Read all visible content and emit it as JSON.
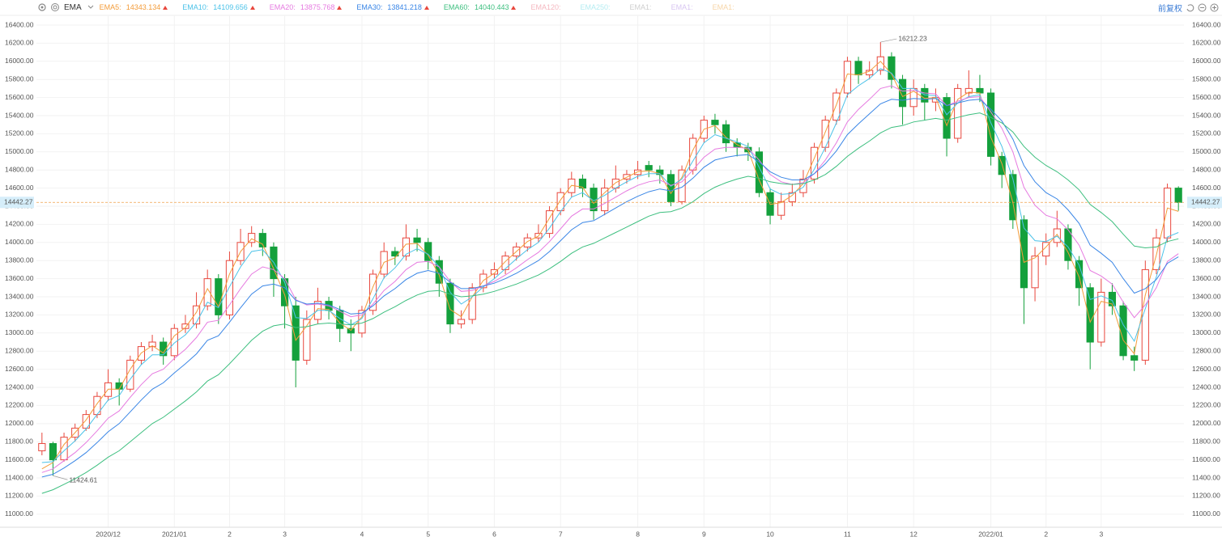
{
  "indicator": "EMA",
  "adjust_label": "前复权",
  "chart_data": {
    "type": "candlestick",
    "categories": [
      null,
      null,
      null,
      null,
      null,
      null,
      "2020/12",
      null,
      null,
      null,
      null,
      null,
      "2021/01",
      null,
      null,
      null,
      null,
      "2",
      null,
      null,
      null,
      null,
      "3",
      null,
      null,
      null,
      null,
      null,
      null,
      "4",
      null,
      null,
      null,
      null,
      null,
      "5",
      null,
      null,
      null,
      null,
      null,
      "6",
      null,
      null,
      null,
      null,
      null,
      "7",
      null,
      null,
      null,
      null,
      null,
      null,
      "8",
      null,
      null,
      null,
      null,
      null,
      "9",
      null,
      null,
      null,
      null,
      null,
      "10",
      null,
      null,
      null,
      null,
      null,
      null,
      "11",
      null,
      null,
      null,
      null,
      null,
      "12",
      null,
      null,
      null,
      null,
      null,
      null,
      "2022/01",
      null,
      null,
      null,
      null,
      "2",
      null,
      null,
      null,
      null,
      "3",
      null,
      null,
      null,
      null,
      null,
      null,
      null
    ],
    "open": [
      11700,
      11780,
      11600,
      11850,
      11950,
      12100,
      12300,
      12450,
      12380,
      12700,
      12850,
      12900,
      12750,
      13050,
      13100,
      13300,
      13600,
      13200,
      13800,
      14000,
      14100,
      13950,
      13600,
      13300,
      12700,
      13150,
      13350,
      13250,
      13050,
      13000,
      13250,
      13650,
      13900,
      13850,
      14050,
      14000,
      13800,
      13550,
      13100,
      13150,
      13500,
      13650,
      13700,
      13850,
      13950,
      14050,
      14100,
      14350,
      14550,
      14700,
      14600,
      14350,
      14600,
      14700,
      14750,
      14850,
      14800,
      14750,
      14450,
      14800,
      15150,
      15350,
      15300,
      15100,
      15050,
      15000,
      14550,
      14300,
      14450,
      14550,
      14700,
      15050,
      15350,
      15650,
      16000,
      15850,
      15900,
      16050,
      15800,
      15500,
      15700,
      15550,
      15600,
      15150,
      15650,
      15700,
      15650,
      14950,
      14750,
      14250,
      13500,
      13850,
      14000,
      14150,
      13800,
      13500,
      12900,
      13450,
      13300,
      12750,
      12700,
      13700,
      14050,
      14600
    ],
    "high": [
      11900,
      11800,
      11900,
      12000,
      12150,
      12350,
      12600,
      12500,
      12750,
      12900,
      12980,
      12950,
      13100,
      13200,
      13450,
      13700,
      13650,
      13900,
      14150,
      14180,
      14150,
      14000,
      13650,
      13400,
      13250,
      13500,
      13400,
      13300,
      13150,
      13300,
      13700,
      14000,
      13950,
      14200,
      14150,
      14050,
      13850,
      13600,
      13250,
      13550,
      13700,
      13780,
      13900,
      14000,
      14100,
      14200,
      14400,
      14600,
      14780,
      14750,
      14650,
      14700,
      14850,
      14800,
      14900,
      14900,
      14850,
      14800,
      14850,
      15200,
      15400,
      15420,
      15350,
      15150,
      15100,
      15050,
      14600,
      14550,
      14650,
      14800,
      15100,
      15400,
      15700,
      16050,
      16050,
      16000,
      16212.23,
      16100,
      15850,
      15800,
      15750,
      15700,
      15650,
      15750,
      15900,
      15850,
      15700,
      15000,
      14800,
      14300,
      13950,
      14100,
      14350,
      14200,
      13850,
      13550,
      13600,
      13550,
      13350,
      12850,
      13800,
      14150,
      14650,
      14620
    ],
    "low": [
      11650,
      11424.61,
      11580,
      11800,
      11920,
      12060,
      12250,
      12200,
      12350,
      12650,
      12800,
      12650,
      12700,
      13000,
      13050,
      13250,
      13100,
      13150,
      13750,
      13950,
      13850,
      13400,
      13050,
      12400,
      12650,
      13100,
      13150,
      12900,
      12800,
      12950,
      13200,
      13600,
      13750,
      13800,
      13900,
      13700,
      13400,
      13000,
      13050,
      13100,
      13450,
      13600,
      13650,
      13800,
      13900,
      14000,
      14050,
      14300,
      14500,
      14500,
      14250,
      14300,
      14550,
      14650,
      14700,
      14720,
      14650,
      14400,
      14420,
      14750,
      15100,
      15200,
      15000,
      14950,
      14900,
      14500,
      14200,
      14250,
      14400,
      14500,
      14650,
      15000,
      15300,
      15600,
      15750,
      15800,
      15850,
      15700,
      15300,
      15400,
      15350,
      15450,
      14950,
      15100,
      15600,
      15550,
      14850,
      14600,
      14150,
      13100,
      13350,
      13750,
      13950,
      13700,
      13300,
      12600,
      12850,
      13200,
      12700,
      12580,
      12650,
      13650,
      14000,
      14350
    ],
    "close": [
      11780,
      11600,
      11850,
      11950,
      12100,
      12300,
      12450,
      12380,
      12700,
      12850,
      12900,
      12750,
      13050,
      13100,
      13300,
      13600,
      13200,
      13800,
      14000,
      14100,
      13950,
      13600,
      13300,
      12700,
      13150,
      13350,
      13250,
      13050,
      13000,
      13250,
      13650,
      13900,
      13850,
      14050,
      14000,
      13800,
      13550,
      13100,
      13150,
      13500,
      13650,
      13700,
      13850,
      13950,
      14050,
      14100,
      14350,
      14550,
      14700,
      14600,
      14350,
      14600,
      14700,
      14750,
      14800,
      14800,
      14750,
      14450,
      14800,
      15150,
      15350,
      15300,
      15100,
      15050,
      15000,
      14550,
      14300,
      14450,
      14550,
      14700,
      15050,
      15350,
      15650,
      16000,
      15850,
      15900,
      16050,
      15800,
      15500,
      15700,
      15550,
      15600,
      15150,
      15700,
      15700,
      15650,
      14950,
      14750,
      14250,
      13500,
      13850,
      14000,
      14150,
      13800,
      13500,
      12900,
      13450,
      13300,
      12750,
      12700,
      13700,
      14050,
      14600,
      14442.27
    ],
    "up_color": "#e8473d",
    "down_color": "#14a03c",
    "last_price_color": "#f0a04b",
    "series": [
      {
        "name": "EMA5:",
        "color": "#f39c3a",
        "values": [
          11500,
          11570,
          11770,
          11900,
          12040,
          12220,
          12380,
          12380,
          12600,
          12780,
          12860,
          12780,
          12970,
          13060,
          13230,
          13490,
          13290,
          13650,
          13900,
          14040,
          13980,
          13710,
          13420,
          12920,
          13080,
          13270,
          13260,
          13110,
          13030,
          13180,
          13510,
          13780,
          13830,
          13980,
          13990,
          13860,
          13640,
          13260,
          13180,
          13400,
          13580,
          13660,
          13790,
          13900,
          14010,
          14070,
          14270,
          14470,
          14630,
          14610,
          14430,
          14550,
          14660,
          14720,
          14780,
          14790,
          14760,
          14540,
          14720,
          15020,
          15250,
          15290,
          15160,
          15080,
          15020,
          14690,
          14420,
          14440,
          14520,
          14650,
          14930,
          15220,
          15520,
          15860,
          15850,
          15890,
          16000,
          15860,
          15610,
          15670,
          15590,
          15600,
          15290,
          15580,
          15660,
          15650,
          15160,
          14870,
          14440,
          13780,
          13830,
          13950,
          14090,
          13890,
          13620,
          13120,
          13350,
          13320,
          12920,
          12770,
          13420,
          13860,
          14380,
          14343.134
        ]
      },
      {
        "name": "EMA10:",
        "color": "#4cc2e8",
        "values": [
          11570,
          11580,
          11700,
          11810,
          11940,
          12100,
          12260,
          12310,
          12490,
          12650,
          12760,
          12760,
          12890,
          12980,
          13120,
          13340,
          13280,
          13510,
          13730,
          13900,
          13920,
          13780,
          13560,
          13170,
          13160,
          13250,
          13250,
          13160,
          13090,
          13160,
          13380,
          13610,
          13720,
          13870,
          13930,
          13870,
          13730,
          13450,
          13320,
          13400,
          13510,
          13600,
          13710,
          13820,
          13920,
          14000,
          14160,
          14340,
          14500,
          14550,
          14460,
          14520,
          14600,
          14670,
          14730,
          14760,
          14760,
          14620,
          14700,
          14900,
          15100,
          15190,
          15150,
          15110,
          15060,
          14830,
          14590,
          14530,
          14540,
          14610,
          14810,
          15050,
          15320,
          15630,
          15730,
          15810,
          15920,
          15870,
          15700,
          15700,
          15630,
          15620,
          15410,
          15540,
          15610,
          15630,
          15320,
          15060,
          14700,
          14160,
          14020,
          14010,
          14070,
          13950,
          13750,
          13370,
          13410,
          13360,
          13090,
          12910,
          13270,
          13620,
          14060,
          14109.656
        ]
      },
      {
        "name": "EMA20:",
        "color": "#e67ae0",
        "values": [
          11460,
          11500,
          11590,
          11680,
          11790,
          11920,
          12060,
          12140,
          12290,
          12430,
          12550,
          12600,
          12720,
          12820,
          12950,
          13120,
          13140,
          13310,
          13490,
          13650,
          13730,
          13700,
          13600,
          13370,
          13310,
          13320,
          13300,
          13240,
          13180,
          13200,
          13320,
          13470,
          13570,
          13700,
          13780,
          13790,
          13730,
          13570,
          13460,
          13470,
          13520,
          13570,
          13640,
          13720,
          13810,
          13890,
          14010,
          14150,
          14290,
          14370,
          14370,
          14430,
          14500,
          14570,
          14630,
          14670,
          14690,
          14630,
          14670,
          14800,
          14940,
          15030,
          15050,
          15050,
          15040,
          14910,
          14750,
          14670,
          14640,
          14660,
          14760,
          14910,
          15100,
          15330,
          15470,
          15580,
          15700,
          15730,
          15670,
          15680,
          15650,
          15640,
          15510,
          15560,
          15600,
          15610,
          15440,
          15260,
          15000,
          14610,
          14410,
          14300,
          14260,
          14140,
          13970,
          13690,
          13630,
          13540,
          13340,
          13170,
          13310,
          13500,
          13790,
          13875.768
        ]
      },
      {
        "name": "EMA30:",
        "color": "#3a86e6",
        "values": [
          11410,
          11440,
          11510,
          11590,
          11680,
          11790,
          11910,
          12000,
          12130,
          12260,
          12380,
          12450,
          12560,
          12660,
          12770,
          12920,
          12970,
          13120,
          13280,
          13430,
          13520,
          13540,
          13500,
          13360,
          13320,
          13330,
          13310,
          13260,
          13210,
          13220,
          13300,
          13410,
          13490,
          13590,
          13660,
          13690,
          13660,
          13560,
          13490,
          13490,
          13520,
          13550,
          13600,
          13660,
          13730,
          13800,
          13900,
          14020,
          14140,
          14220,
          14240,
          14310,
          14380,
          14450,
          14510,
          14560,
          14590,
          14570,
          14610,
          14710,
          14830,
          14910,
          14940,
          14960,
          14970,
          14890,
          14780,
          14720,
          14690,
          14690,
          14760,
          14870,
          15010,
          15190,
          15310,
          15420,
          15530,
          15580,
          15570,
          15590,
          15580,
          15590,
          15510,
          15540,
          15570,
          15580,
          15470,
          15340,
          15140,
          14850,
          14670,
          14550,
          14480,
          14360,
          14210,
          13970,
          13880,
          13780,
          13600,
          13440,
          13490,
          13590,
          13770,
          13841.218
        ]
      },
      {
        "name": "EMA60:",
        "color": "#3dbf7f",
        "values": [
          11230,
          11270,
          11330,
          11390,
          11460,
          11540,
          11630,
          11700,
          11800,
          11900,
          12000,
          12070,
          12160,
          12250,
          12350,
          12470,
          12540,
          12660,
          12790,
          12920,
          13020,
          13080,
          13100,
          13060,
          13070,
          13100,
          13110,
          13100,
          13090,
          13110,
          13160,
          13230,
          13290,
          13360,
          13420,
          13460,
          13470,
          13430,
          13400,
          13410,
          13430,
          13460,
          13500,
          13540,
          13590,
          13640,
          13710,
          13790,
          13880,
          13950,
          13990,
          14050,
          14110,
          14170,
          14230,
          14290,
          14330,
          14340,
          14380,
          14450,
          14540,
          14610,
          14660,
          14700,
          14730,
          14710,
          14670,
          14650,
          14640,
          14650,
          14690,
          14750,
          14840,
          14950,
          15040,
          15120,
          15210,
          15270,
          15290,
          15330,
          15350,
          15370,
          15350,
          15380,
          15410,
          15430,
          15380,
          15320,
          15220,
          15060,
          14940,
          14850,
          14780,
          14690,
          14580,
          14420,
          14330,
          14230,
          14090,
          13960,
          13940,
          13950,
          14010,
          14040.443
        ]
      }
    ],
    "inactive_series": [
      {
        "name": "EMA120:",
        "color": "#f5b8c0"
      },
      {
        "name": "EMA250:",
        "color": "#b5ecf2"
      },
      {
        "name": "EMA1:",
        "color": "#cfcfcf"
      },
      {
        "name": "EMA1:",
        "color": "#d8c6f2"
      },
      {
        "name": "EMA1:",
        "color": "#f7d6a8"
      }
    ],
    "ylim": [
      10860,
      16500
    ],
    "yticks": [
      {
        "value": 11000,
        "label": "11000.00"
      },
      {
        "value": 11200,
        "label": "11200.00"
      },
      {
        "value": 11400,
        "label": "11400.00"
      },
      {
        "value": 11600,
        "label": "11600.00"
      },
      {
        "value": 11800,
        "label": "11800.00"
      },
      {
        "value": 12000,
        "label": "12000.00"
      },
      {
        "value": 12200,
        "label": "12200.00"
      },
      {
        "value": 12400,
        "label": "12400.00"
      },
      {
        "value": 12600,
        "label": "12600.00"
      },
      {
        "value": 12800,
        "label": "12800.00"
      },
      {
        "value": 13000,
        "label": "13000.00"
      },
      {
        "value": 13200,
        "label": "13200.00"
      },
      {
        "value": 13400,
        "label": "13400.00"
      },
      {
        "value": 13600,
        "label": "13600.00"
      },
      {
        "value": 13800,
        "label": "13800.00"
      },
      {
        "value": 14000,
        "label": "14000.00"
      },
      {
        "value": 14200,
        "label": "14200.00"
      },
      {
        "value": 14400,
        "label": "14400.00"
      },
      {
        "value": 14600,
        "label": "14600.00"
      },
      {
        "value": 14800,
        "label": "14800.00"
      },
      {
        "value": 15000,
        "label": "15000.00"
      },
      {
        "value": 15200,
        "label": "15200.00"
      },
      {
        "value": 15400,
        "label": "15400.00"
      },
      {
        "value": 15600,
        "label": "15600.00"
      },
      {
        "value": 15800,
        "label": "15800.00"
      },
      {
        "value": 16000,
        "label": "16000.00"
      },
      {
        "value": 16200,
        "label": "16200.00"
      },
      {
        "value": 16400,
        "label": "16400.00"
      }
    ],
    "grid": true
  }
}
